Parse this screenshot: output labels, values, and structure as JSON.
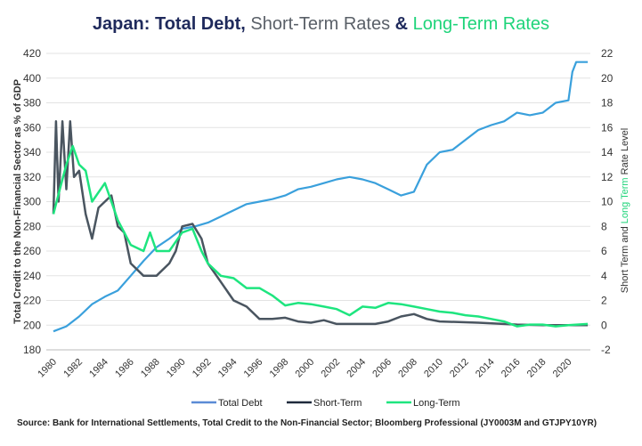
{
  "chart_data": {
    "type": "line",
    "title_parts": [
      {
        "text": "Japan: Total Debt",
        "color": "#1f2a5c"
      },
      {
        "text": ", ",
        "color": "#1f2a5c"
      },
      {
        "text": "Short-Term Rates",
        "color": "#5a6068"
      },
      {
        "text": " & ",
        "color": "#1f2a5c"
      },
      {
        "text": "Long-Term Rates",
        "color": "#1ed47a"
      }
    ],
    "ylabel_left": "Total Credit to the Non-Financial Sector as % of GDP",
    "ylabel_right_parts": [
      {
        "text": "Short Term and ",
        "color": "#333"
      },
      {
        "text": "Long Term",
        "color": "#1ed47a"
      },
      {
        "text": " Rate Level",
        "color": "#333"
      }
    ],
    "ylim_left": [
      180,
      420
    ],
    "yticks_left": [
      180,
      200,
      220,
      240,
      260,
      280,
      300,
      320,
      340,
      360,
      380,
      400,
      420
    ],
    "ylim_right": [
      -2,
      22
    ],
    "yticks_right": [
      -2,
      0,
      2,
      4,
      6,
      8,
      10,
      12,
      14,
      16,
      18,
      20,
      22
    ],
    "xlim": [
      1980,
      2021.7
    ],
    "xticks": [
      1980,
      1982,
      1984,
      1986,
      1988,
      1990,
      1992,
      1994,
      1996,
      1998,
      2000,
      2002,
      2004,
      2006,
      2008,
      2010,
      2012,
      2014,
      2016,
      2018,
      2020
    ],
    "grid": "horizontal",
    "legend_position": "bottom",
    "series": [
      {
        "name": "Total Debt",
        "axis": "left",
        "color": "#3aa0dc",
        "legend_color": "#5b8bd6",
        "x": [
          1980,
          1981,
          1982,
          1983,
          1984,
          1985,
          1986,
          1987,
          1988,
          1989,
          1990,
          1991,
          1992,
          1993,
          1994,
          1995,
          1996,
          1997,
          1998,
          1999,
          2000,
          2001,
          2002,
          2003,
          2004,
          2005,
          2006,
          2007,
          2008,
          2009,
          2010,
          2011,
          2012,
          2013,
          2014,
          2015,
          2016,
          2017,
          2018,
          2019,
          2020,
          2020.3,
          2020.6,
          2021.5
        ],
        "y": [
          195,
          199,
          207,
          217,
          223,
          228,
          240,
          252,
          263,
          270,
          278,
          280,
          283,
          288,
          293,
          298,
          300,
          302,
          305,
          310,
          312,
          315,
          318,
          320,
          318,
          315,
          310,
          305,
          308,
          330,
          340,
          342,
          350,
          358,
          362,
          365,
          372,
          370,
          372,
          380,
          382,
          405,
          413,
          413
        ]
      },
      {
        "name": "Short-Term",
        "axis": "right",
        "color": "#4a5560",
        "legend_color": "#1f2a3c",
        "x": [
          1980,
          1980.2,
          1980.4,
          1980.7,
          1981,
          1981.3,
          1981.6,
          1982,
          1982.5,
          1983,
          1983.5,
          1984,
          1984.5,
          1985,
          1985.5,
          1986,
          1986.5,
          1987,
          1988,
          1989,
          1989.5,
          1990,
          1990.8,
          1991.5,
          1992,
          1993,
          1994,
          1995,
          1996,
          1997,
          1998,
          1999,
          2000,
          2001,
          2002,
          2005,
          2006,
          2007,
          2008,
          2009,
          2010,
          2013,
          2016,
          2018,
          2021.5
        ],
        "y": [
          9,
          16.5,
          10,
          16.5,
          11,
          16.5,
          12,
          12.5,
          9,
          7,
          9.5,
          10,
          10.5,
          8,
          7.5,
          5,
          4.5,
          4,
          4,
          5,
          6,
          8,
          8.2,
          7,
          5,
          3.5,
          2,
          1.5,
          0.5,
          0.5,
          0.6,
          0.3,
          0.2,
          0.4,
          0.1,
          0.1,
          0.3,
          0.7,
          0.9,
          0.5,
          0.3,
          0.2,
          0.05,
          0,
          0
        ]
      },
      {
        "name": "Long-Term",
        "axis": "right",
        "color": "#1ee57f",
        "legend_color": "#1ee57f",
        "x": [
          1980,
          1980.5,
          1981,
          1981.5,
          1982,
          1982.5,
          1983,
          1984,
          1984.5,
          1985,
          1986,
          1987,
          1987.5,
          1988,
          1989,
          1990,
          1990.8,
          1991.5,
          1992,
          1993,
          1994,
          1995,
          1996,
          1997,
          1998,
          1999,
          2000,
          2001,
          2002,
          2003,
          2004,
          2005,
          2006,
          2007,
          2008,
          2009,
          2010,
          2011,
          2012,
          2013,
          2014,
          2015,
          2016,
          2017,
          2018,
          2019,
          2020,
          2021.5
        ],
        "y": [
          9,
          11,
          13,
          14.5,
          13,
          12.5,
          10,
          11.5,
          10,
          8.5,
          6.5,
          6,
          7.5,
          6,
          6,
          7.5,
          7.8,
          6,
          5,
          4,
          3.8,
          3,
          3,
          2.4,
          1.6,
          1.8,
          1.7,
          1.5,
          1.3,
          0.8,
          1.5,
          1.4,
          1.8,
          1.7,
          1.5,
          1.3,
          1.1,
          1,
          0.8,
          0.7,
          0.5,
          0.3,
          -0.1,
          0.05,
          0.05,
          -0.1,
          0,
          0.1
        ]
      }
    ]
  },
  "source": "Source: Bank for International Settlements, Total Credit to the Non-Financial Sector; Bloomberg Professional (JY0003M and GTJPY10YR)"
}
